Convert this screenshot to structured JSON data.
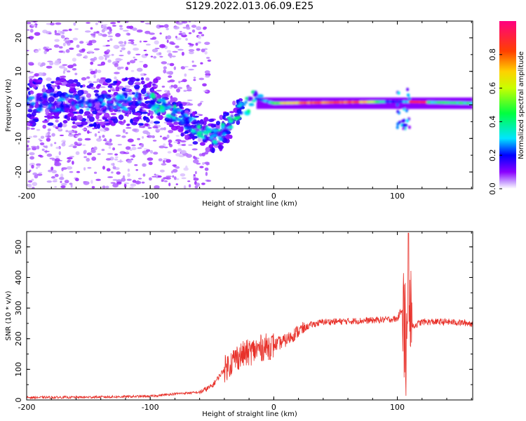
{
  "figure": {
    "title": "S129.2022.013.06.09.E25"
  },
  "chart_data": [
    {
      "type": "heatmap",
      "title": "S129.2022.013.06.09.E25",
      "xlabel": "Height of straight line (km)",
      "ylabel": "Frequency (Hz)",
      "xlim": [
        -200,
        161
      ],
      "ylim": [
        -25,
        25
      ],
      "x_ticks": [
        -200,
        -100,
        0,
        100
      ],
      "y_ticks": [
        -20,
        -10,
        0,
        10,
        20
      ],
      "colorbar": {
        "label": "Normalized spectral amplitude",
        "range": [
          0,
          1
        ],
        "ticks": [
          0.0,
          0.2,
          0.4,
          0.6,
          0.8
        ],
        "colors": [
          "#ffffff",
          "#c8a0ff",
          "#8a00ff",
          "#0000ff",
          "#00e5ff",
          "#00ff40",
          "#c8ff00",
          "#ffd000",
          "#ff4000",
          "#ff0080"
        ]
      },
      "ridge_frequency_hz": [
        {
          "x": -200,
          "y": 1.0
        },
        {
          "x": -150,
          "y": 0.5
        },
        {
          "x": -100,
          "y": 1.0
        },
        {
          "x": -80,
          "y": -2.5
        },
        {
          "x": -60,
          "y": -7.5
        },
        {
          "x": -45,
          "y": -9.5
        },
        {
          "x": -30,
          "y": -2.5
        },
        {
          "x": -15,
          "y": 2.0
        },
        {
          "x": 0,
          "y": 0.5
        },
        {
          "x": 100,
          "y": 1.0
        },
        {
          "x": 161,
          "y": 0.5
        }
      ]
    },
    {
      "type": "line",
      "xlabel": "Height of straight line (km)",
      "ylabel": "SNR (10 * v/v)",
      "xlim": [
        -200,
        161
      ],
      "ylim": [
        0,
        550
      ],
      "x_ticks": [
        -200,
        -100,
        0,
        100
      ],
      "y_ticks": [
        0,
        100,
        200,
        300,
        400,
        500
      ],
      "series": [
        {
          "color": "#e8312a",
          "x": [
            -200,
            -150,
            -100,
            -80,
            -60,
            -50,
            -40,
            -30,
            -20,
            -10,
            0,
            10,
            20,
            30,
            40,
            60,
            80,
            100,
            104,
            106,
            108,
            110,
            112,
            120,
            140,
            161
          ],
          "y": [
            8,
            9,
            12,
            20,
            25,
            45,
            100,
            140,
            155,
            170,
            178,
            195,
            225,
            245,
            255,
            257,
            260,
            265,
            300,
            220,
            130,
            300,
            240,
            255,
            255,
            250
          ]
        }
      ]
    }
  ]
}
